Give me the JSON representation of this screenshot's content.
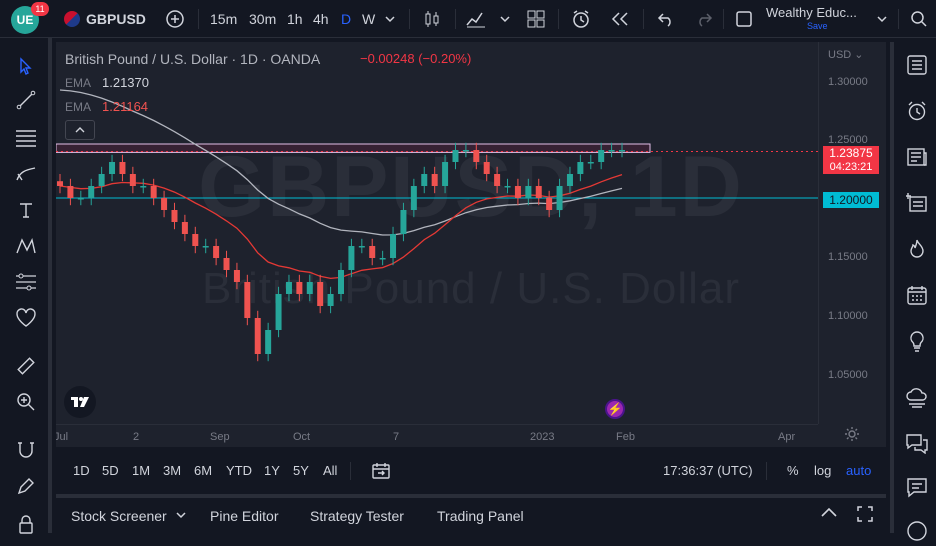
{
  "topbar": {
    "logo": "UE",
    "notifications": "11",
    "symbol": "GBPUSD",
    "timeframes": [
      "15m",
      "30m",
      "1h",
      "4h",
      "D",
      "W"
    ],
    "active_timeframe": "D",
    "layout_name": "Wealthy Educ...",
    "layout_save": "Save"
  },
  "legend": {
    "title": "British Pound / U.S. Dollar · 1D · OANDA",
    "change": "−0.00248 (−0.20%)",
    "ema1_label": "EMA",
    "ema1_value": "1.21370",
    "ema2_label": "EMA",
    "ema2_value": "1.21164"
  },
  "watermark": {
    "symbol": "GBPUSD, 1D",
    "name": "British Pound / U.S. Dollar"
  },
  "price_axis": {
    "currency": "USD",
    "labels": [
      "1.30000",
      "1.25000",
      "1.15000",
      "1.10000",
      "1.05000"
    ],
    "current_price": "1.23875",
    "countdown": "04:23:21",
    "line_price": "1.20000"
  },
  "time_axis": {
    "labels": [
      "Jul",
      "2",
      "Sep",
      "Oct",
      "7",
      "2023",
      "Feb",
      "Apr"
    ]
  },
  "range_bar": {
    "ranges": [
      "1D",
      "5D",
      "1M",
      "3M",
      "6M",
      "YTD",
      "1Y",
      "5Y",
      "All"
    ],
    "clock": "17:36:37 (UTC)",
    "percent": "%",
    "log": "log",
    "auto": "auto"
  },
  "bottom_tabs": [
    "Stock Screener",
    "Pine Editor",
    "Strategy Tester",
    "Trading Panel"
  ],
  "colors": {
    "up": "#26a69a",
    "down": "#ef5350",
    "ema_slow": "#b2b5be",
    "ema_fast": "#e53935",
    "support_line": "#00bcd4",
    "current_price": "#f23645",
    "accent": "#2962ff"
  },
  "chart_data": {
    "type": "candlestick",
    "title": "British Pound / U.S. Dollar · 1D · OANDA",
    "ylim": [
      1.02,
      1.32
    ],
    "xlabels": [
      "Jul",
      "2",
      "Sep",
      "Oct",
      "7",
      "2023",
      "Feb",
      "Apr"
    ],
    "close_series": [
      1.21,
      1.2,
      1.2,
      1.21,
      1.22,
      1.23,
      1.22,
      1.21,
      1.21,
      1.2,
      1.19,
      1.18,
      1.17,
      1.16,
      1.16,
      1.15,
      1.14,
      1.13,
      1.1,
      1.07,
      1.09,
      1.12,
      1.13,
      1.12,
      1.13,
      1.11,
      1.12,
      1.14,
      1.16,
      1.16,
      1.15,
      1.15,
      1.17,
      1.19,
      1.21,
      1.22,
      1.21,
      1.23,
      1.24,
      1.24,
      1.23,
      1.22,
      1.21,
      1.21,
      1.2,
      1.21,
      1.2,
      1.19,
      1.21,
      1.22,
      1.23,
      1.23,
      1.24,
      1.24,
      1.24
    ],
    "current_price": 1.23875,
    "horizontal_line": 1.2,
    "resistance_zone": [
      1.238,
      1.245
    ]
  }
}
